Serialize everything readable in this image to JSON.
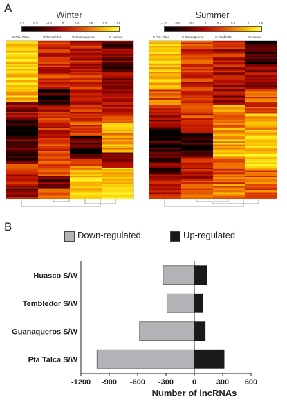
{
  "panel_a": {
    "letter": "A",
    "scale_ticks": [
      "-1.2",
      "-0.8",
      "-0.4",
      "0",
      "0.4",
      "0.8",
      "1.2",
      "1.6"
    ],
    "heatmaps": [
      {
        "title": "Winter",
        "columns": [
          "W Pta. Talca",
          "W Tembledor",
          "W Guanaqueros",
          "W Huasco"
        ]
      },
      {
        "title": "Summer",
        "columns": [
          "S Pta. Talca",
          "S Guanaqueros",
          "S Tembledor",
          "S Huasco"
        ]
      }
    ]
  },
  "panel_b": {
    "letter": "B",
    "colors": {
      "down": "#b3b2b6",
      "up": "#1a1a1a"
    },
    "chart_data": {
      "type": "bar",
      "orientation": "horizontal",
      "categories": [
        "Huasco S/W",
        "Tembledor S/W",
        "Guanaqueros S/W",
        "Pta Talca S/W"
      ],
      "series": [
        {
          "name": "Down-regulated",
          "values": [
            -330,
            -290,
            -580,
            -1030
          ]
        },
        {
          "name": "Up-regulated",
          "values": [
            135,
            85,
            115,
            315
          ]
        }
      ],
      "xlabel": "Number of lncRNAs",
      "ylabel": "",
      "xlim": [
        -1200,
        600
      ],
      "xticks": [
        "-1200",
        "-900",
        "-600",
        "-300",
        "0",
        "300",
        "600"
      ],
      "legend": "top"
    }
  }
}
